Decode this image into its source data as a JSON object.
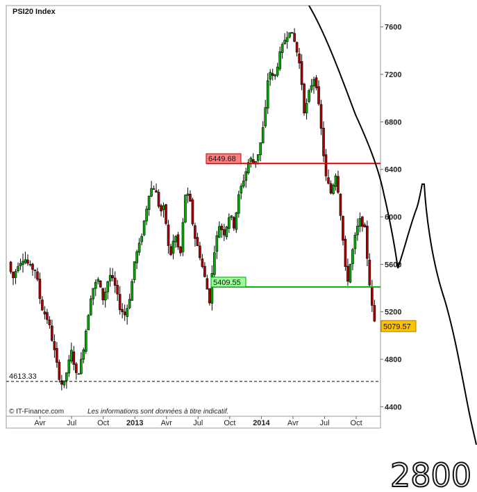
{
  "chart_data": {
    "type": "candlestick",
    "title": "PSI20 Index",
    "copyright": "© IT-Finance.com",
    "disclaimer": "Les informations sont données à titre indicatif.",
    "ylim": [
      4320,
      7780
    ],
    "yticks": [
      4400,
      4800,
      5200,
      5600,
      6000,
      6400,
      6800,
      7200,
      7600
    ],
    "x_ticks": [
      {
        "label": "Avr",
        "month": 3,
        "bold": false
      },
      {
        "label": "Jul",
        "month": 6,
        "bold": false
      },
      {
        "label": "Oct",
        "month": 9,
        "bold": false
      },
      {
        "label": "2013",
        "month": 12,
        "bold": true
      },
      {
        "label": "Avr",
        "month": 15,
        "bold": false
      },
      {
        "label": "Jul",
        "month": 18,
        "bold": false
      },
      {
        "label": "Oct",
        "month": 21,
        "bold": false
      },
      {
        "label": "2014",
        "month": 24,
        "bold": true
      },
      {
        "label": "Avr",
        "month": 27,
        "bold": false
      },
      {
        "label": "Jul",
        "month": 30,
        "bold": false
      },
      {
        "label": "Oct",
        "month": 33,
        "bold": false
      }
    ],
    "x_range_months": [
      -0.2,
      35.3
    ],
    "levels": [
      {
        "name": "resistance",
        "value": 6449.68,
        "label": "6449.68",
        "color": "#e00000",
        "box_fill": "#ff8080",
        "box_stroke": "#cc0000",
        "style": "solid"
      },
      {
        "name": "support",
        "value": 5409.55,
        "label": "5409.55",
        "color": "#00b000",
        "box_fill": "#9cff9c",
        "box_stroke": "#00a000",
        "style": "solid"
      },
      {
        "name": "low",
        "value": 4613.33,
        "label": "4613.33",
        "color": "#000000",
        "style": "dashed"
      }
    ],
    "last_price": {
      "value": 5079.57,
      "label": "5079.57",
      "color": "#ffc000"
    },
    "anchors": [
      [
        0.0,
        5620
      ],
      [
        0.4,
        5470
      ],
      [
        0.9,
        5600
      ],
      [
        1.5,
        5660
      ],
      [
        2.0,
        5580
      ],
      [
        2.6,
        5550
      ],
      [
        3.1,
        5250
      ],
      [
        3.8,
        5120
      ],
      [
        4.3,
        4900
      ],
      [
        4.8,
        4660
      ],
      [
        5.2,
        4560
      ],
      [
        5.6,
        4720
      ],
      [
        6.0,
        4870
      ],
      [
        6.5,
        4640
      ],
      [
        7.0,
        4820
      ],
      [
        7.4,
        5070
      ],
      [
        7.9,
        5380
      ],
      [
        8.5,
        5470
      ],
      [
        9.0,
        5300
      ],
      [
        9.6,
        5520
      ],
      [
        10.1,
        5420
      ],
      [
        10.6,
        5230
      ],
      [
        11.1,
        5170
      ],
      [
        11.6,
        5360
      ],
      [
        12.0,
        5650
      ],
      [
        12.5,
        5780
      ],
      [
        13.0,
        6020
      ],
      [
        13.4,
        6230
      ],
      [
        13.9,
        6250
      ],
      [
        14.4,
        6040
      ],
      [
        14.8,
        6080
      ],
      [
        15.3,
        5640
      ],
      [
        15.8,
        5860
      ],
      [
        16.3,
        5660
      ],
      [
        16.8,
        6200
      ],
      [
        17.2,
        6150
      ],
      [
        17.6,
        5860
      ],
      [
        18.1,
        5700
      ],
      [
        18.6,
        5500
      ],
      [
        19.1,
        5290
      ],
      [
        19.5,
        5700
      ],
      [
        20.0,
        5930
      ],
      [
        20.5,
        5860
      ],
      [
        21.0,
        6030
      ],
      [
        21.4,
        5920
      ],
      [
        21.9,
        6200
      ],
      [
        22.4,
        6340
      ],
      [
        22.9,
        6500
      ],
      [
        23.3,
        6440
      ],
      [
        23.8,
        6560
      ],
      [
        24.3,
        6820
      ],
      [
        24.7,
        7250
      ],
      [
        25.2,
        7150
      ],
      [
        25.7,
        7350
      ],
      [
        26.2,
        7490
      ],
      [
        26.7,
        7580
      ],
      [
        27.2,
        7460
      ],
      [
        27.7,
        7250
      ],
      [
        28.1,
        6860
      ],
      [
        28.6,
        7080
      ],
      [
        29.1,
        7200
      ],
      [
        29.6,
        6800
      ],
      [
        30.1,
        6340
      ],
      [
        30.6,
        6200
      ],
      [
        31.1,
        6380
      ],
      [
        31.6,
        5950
      ],
      [
        32.1,
        5420
      ],
      [
        32.5,
        5640
      ],
      [
        33.0,
        5880
      ],
      [
        33.4,
        5980
      ],
      [
        33.8,
        5900
      ],
      [
        34.2,
        5500
      ],
      [
        34.6,
        5150
      ],
      [
        34.9,
        5079.57
      ]
    ]
  },
  "annotation": {
    "handwritten_text": "2800"
  }
}
